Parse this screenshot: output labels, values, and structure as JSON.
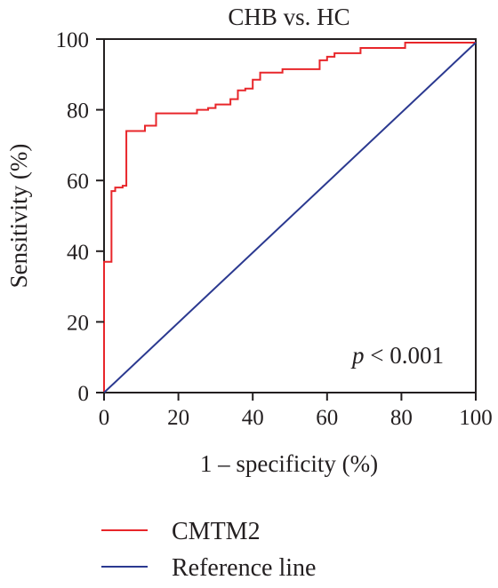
{
  "chart_data": {
    "type": "line",
    "title": "CHB vs. HC",
    "xlabel": "1 – specificity (%)",
    "ylabel": "Sensitivity (%)",
    "xlim": [
      0,
      100
    ],
    "ylim": [
      0,
      100
    ],
    "x_ticks": [
      "0",
      "20",
      "40",
      "60",
      "80",
      "100"
    ],
    "y_ticks": [
      "0",
      "20",
      "40",
      "60",
      "80",
      "100"
    ],
    "grid": false,
    "legend_position": "bottom",
    "annotation": {
      "italic_part": "p",
      "rest": " < 0.001"
    },
    "series": [
      {
        "name": "CMTM2",
        "color": "#e8262a",
        "step": true,
        "x": [
          0,
          0,
          2,
          2,
          3,
          3,
          5,
          5,
          6,
          6,
          11,
          11,
          14,
          14,
          25,
          25,
          28,
          28,
          30,
          30,
          34,
          34,
          36,
          36,
          38,
          38,
          40,
          40,
          42,
          42,
          48,
          48,
          58,
          58,
          60,
          60,
          62,
          62,
          69,
          69,
          81,
          81,
          100
        ],
        "y": [
          0,
          37,
          37,
          57,
          57,
          58,
          58,
          58.5,
          58.5,
          74,
          74,
          75.5,
          75.5,
          79,
          79,
          80,
          80,
          80.5,
          80.5,
          81.5,
          81.5,
          83,
          83,
          85.5,
          85.5,
          86,
          86,
          88.5,
          88.5,
          90.5,
          90.5,
          91.5,
          91.5,
          94,
          94,
          95,
          95,
          96,
          96,
          97.5,
          97.5,
          99,
          99
        ]
      },
      {
        "name": "Reference line",
        "color": "#2b3990",
        "step": false,
        "x": [
          0,
          100
        ],
        "y": [
          0,
          99
        ]
      }
    ]
  }
}
